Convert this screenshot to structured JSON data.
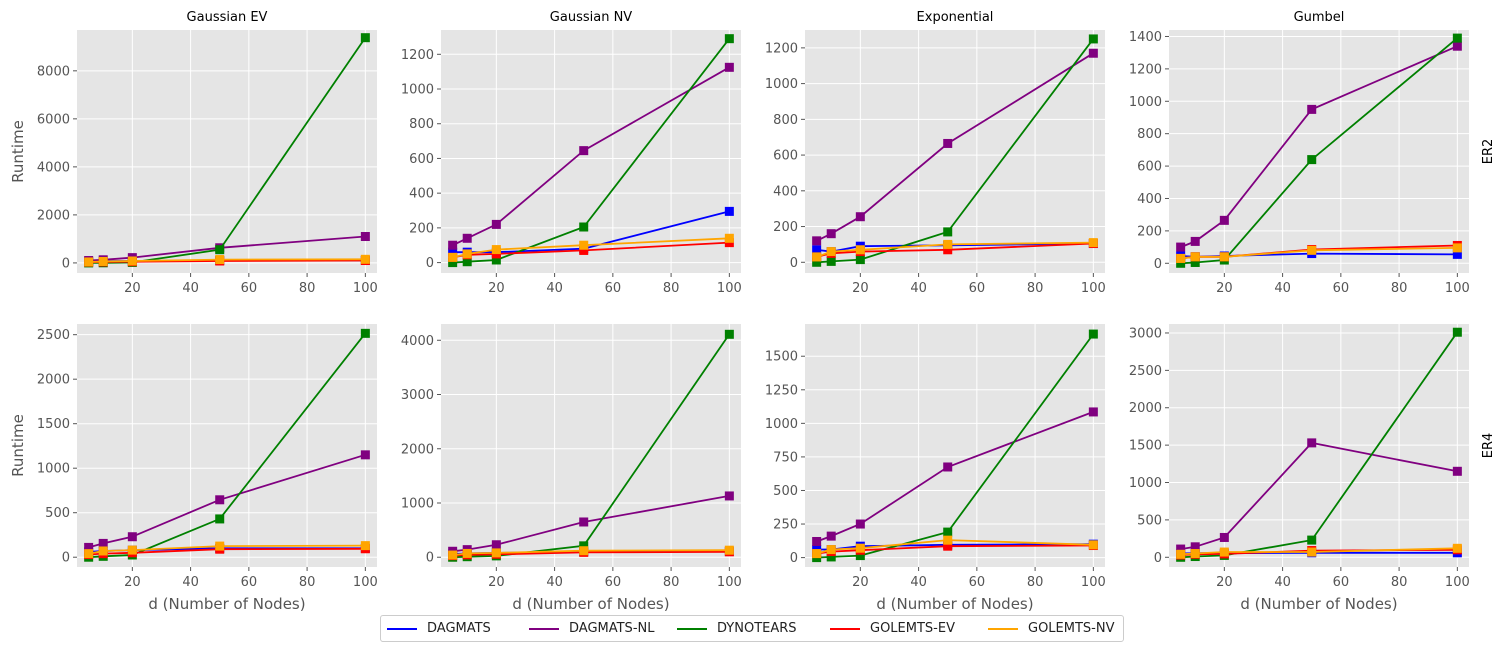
{
  "colors": {
    "panel_bg": "#e5e5e5",
    "grid": "#ffffff",
    "DAGMATS": "#0000ff",
    "DAGMATS-NL": "#800080",
    "DYNOTEARS": "#008000",
    "GOLEMTS-EV": "#ff0000",
    "GOLEMTS-NV": "#ffa500"
  },
  "legend": {
    "placement": "bottom-center",
    "entries": [
      "DAGMATS",
      "DAGMATS-NL",
      "DYNOTEARS",
      "GOLEMTS-EV",
      "GOLEMTS-NV"
    ]
  },
  "column_titles": [
    "Gaussian EV",
    "Gaussian NV",
    "Exponential",
    "Gumbel"
  ],
  "row_labels": [
    "ER2",
    "ER4"
  ],
  "ylabel": "Runtime",
  "xlabel": "d (Number of Nodes)",
  "chart_data": [
    {
      "type": "line",
      "row": "ER2",
      "title": "Gaussian EV",
      "xlabel": "",
      "ylabel": "Runtime",
      "x": [
        5,
        10,
        20,
        50,
        100
      ],
      "xlim": [
        1,
        104
      ],
      "xticks": [
        20,
        40,
        60,
        80,
        100
      ],
      "ylim": [
        -420,
        9700
      ],
      "yticks": [
        0,
        2000,
        4000,
        6000,
        8000
      ],
      "grid": true,
      "series": [
        {
          "name": "DAGMATS",
          "values": [
            60,
            70,
            80,
            100,
            110
          ]
        },
        {
          "name": "DAGMATS-NL",
          "values": [
            100,
            130,
            220,
            630,
            1100
          ]
        },
        {
          "name": "DYNOTEARS",
          "values": [
            0,
            5,
            20,
            550,
            9380
          ]
        },
        {
          "name": "GOLEMTS-EV",
          "values": [
            30,
            40,
            50,
            80,
            100
          ]
        },
        {
          "name": "GOLEMTS-NV",
          "values": [
            40,
            60,
            80,
            140,
            150
          ]
        }
      ]
    },
    {
      "type": "line",
      "row": "ER2",
      "title": "Gaussian NV",
      "xlabel": "",
      "ylabel": "",
      "x": [
        5,
        10,
        20,
        50,
        100
      ],
      "xlim": [
        1,
        104
      ],
      "xticks": [
        20,
        40,
        60,
        80,
        100
      ],
      "ylim": [
        -60,
        1340
      ],
      "yticks": [
        0,
        200,
        400,
        600,
        800,
        1000,
        1200
      ],
      "grid": true,
      "series": [
        {
          "name": "DAGMATS",
          "values": [
            60,
            60,
            60,
            80,
            295
          ]
        },
        {
          "name": "DAGMATS-NL",
          "values": [
            100,
            140,
            220,
            645,
            1125
          ]
        },
        {
          "name": "DYNOTEARS",
          "values": [
            0,
            5,
            15,
            205,
            1290
          ]
        },
        {
          "name": "GOLEMTS-EV",
          "values": [
            30,
            45,
            50,
            70,
            115
          ]
        },
        {
          "name": "GOLEMTS-NV",
          "values": [
            30,
            50,
            75,
            100,
            140
          ]
        }
      ]
    },
    {
      "type": "line",
      "row": "ER2",
      "title": "Exponential",
      "xlabel": "",
      "ylabel": "",
      "x": [
        5,
        10,
        20,
        50,
        100
      ],
      "xlim": [
        1,
        104
      ],
      "xticks": [
        20,
        40,
        60,
        80,
        100
      ],
      "ylim": [
        -60,
        1300
      ],
      "yticks": [
        0,
        200,
        400,
        600,
        800,
        1000,
        1200
      ],
      "grid": true,
      "series": [
        {
          "name": "DAGMATS",
          "values": [
            70,
            60,
            90,
            95,
            105
          ]
        },
        {
          "name": "DAGMATS-NL",
          "values": [
            120,
            160,
            255,
            665,
            1170
          ]
        },
        {
          "name": "DYNOTEARS",
          "values": [
            0,
            5,
            15,
            170,
            1250
          ]
        },
        {
          "name": "GOLEMTS-EV",
          "values": [
            30,
            50,
            60,
            70,
            105
          ]
        },
        {
          "name": "GOLEMTS-NV",
          "values": [
            30,
            60,
            70,
            100,
            110
          ]
        }
      ]
    },
    {
      "type": "line",
      "row": "ER2",
      "title": "Gumbel",
      "xlabel": "",
      "ylabel": "",
      "x": [
        5,
        10,
        20,
        50,
        100
      ],
      "xlim": [
        1,
        104
      ],
      "xticks": [
        20,
        40,
        60,
        80,
        100
      ],
      "ylim": [
        -60,
        1440
      ],
      "yticks": [
        0,
        200,
        400,
        600,
        800,
        1000,
        1200,
        1400
      ],
      "grid": true,
      "series": [
        {
          "name": "DAGMATS",
          "values": [
            45,
            40,
            45,
            60,
            55
          ]
        },
        {
          "name": "DAGMATS-NL",
          "values": [
            100,
            135,
            265,
            950,
            1340
          ]
        },
        {
          "name": "DYNOTEARS",
          "values": [
            0,
            5,
            20,
            640,
            1390
          ]
        },
        {
          "name": "GOLEMTS-EV",
          "values": [
            30,
            40,
            40,
            85,
            110
          ]
        },
        {
          "name": "GOLEMTS-NV",
          "values": [
            30,
            40,
            40,
            80,
            95
          ]
        }
      ]
    },
    {
      "type": "line",
      "row": "ER4",
      "title": "",
      "xlabel": "d (Number of Nodes)",
      "ylabel": "Runtime",
      "x": [
        5,
        10,
        20,
        50,
        100
      ],
      "xlim": [
        1,
        104
      ],
      "xticks": [
        20,
        40,
        60,
        80,
        100
      ],
      "ylim": [
        -110,
        2620
      ],
      "yticks": [
        0,
        500,
        1000,
        1500,
        2000,
        2500
      ],
      "grid": true,
      "series": [
        {
          "name": "DAGMATS",
          "values": [
            60,
            70,
            80,
            100,
            100
          ]
        },
        {
          "name": "DAGMATS-NL",
          "values": [
            110,
            155,
            230,
            645,
            1150
          ]
        },
        {
          "name": "DYNOTEARS",
          "values": [
            0,
            10,
            25,
            430,
            2515
          ]
        },
        {
          "name": "GOLEMTS-EV",
          "values": [
            30,
            40,
            50,
            90,
            95
          ]
        },
        {
          "name": "GOLEMTS-NV",
          "values": [
            40,
            70,
            80,
            125,
            130
          ]
        }
      ]
    },
    {
      "type": "line",
      "row": "ER4",
      "title": "",
      "xlabel": "d (Number of Nodes)",
      "ylabel": "",
      "x": [
        5,
        10,
        20,
        50,
        100
      ],
      "xlim": [
        1,
        104
      ],
      "xticks": [
        20,
        40,
        60,
        80,
        100
      ],
      "ylim": [
        -180,
        4300
      ],
      "yticks": [
        0,
        1000,
        2000,
        3000,
        4000
      ],
      "grid": true,
      "series": [
        {
          "name": "DAGMATS",
          "values": [
            60,
            70,
            80,
            100,
            110
          ]
        },
        {
          "name": "DAGMATS-NL",
          "values": [
            110,
            140,
            230,
            650,
            1130
          ]
        },
        {
          "name": "DYNOTEARS",
          "values": [
            0,
            10,
            25,
            210,
            4110
          ]
        },
        {
          "name": "GOLEMTS-EV",
          "values": [
            30,
            45,
            55,
            90,
            100
          ]
        },
        {
          "name": "GOLEMTS-NV",
          "values": [
            40,
            70,
            80,
            120,
            130
          ]
        }
      ]
    },
    {
      "type": "line",
      "row": "ER4",
      "title": "",
      "xlabel": "d (Number of Nodes)",
      "ylabel": "",
      "x": [
        5,
        10,
        20,
        50,
        100
      ],
      "xlim": [
        1,
        104
      ],
      "xticks": [
        20,
        40,
        60,
        80,
        100
      ],
      "ylim": [
        -70,
        1740
      ],
      "yticks": [
        0,
        250,
        500,
        750,
        1000,
        1250,
        1500
      ],
      "grid": true,
      "series": [
        {
          "name": "DAGMATS",
          "values": [
            60,
            60,
            85,
            95,
            100
          ]
        },
        {
          "name": "DAGMATS-NL",
          "values": [
            120,
            160,
            250,
            675,
            1085
          ]
        },
        {
          "name": "DYNOTEARS",
          "values": [
            0,
            5,
            15,
            190,
            1665
          ]
        },
        {
          "name": "GOLEMTS-EV",
          "values": [
            30,
            45,
            55,
            85,
            90
          ]
        },
        {
          "name": "GOLEMTS-NV",
          "values": [
            30,
            60,
            70,
            130,
            95
          ]
        }
      ]
    },
    {
      "type": "line",
      "row": "ER4",
      "title": "",
      "xlabel": "d (Number of Nodes)",
      "ylabel": "",
      "x": [
        5,
        10,
        20,
        50,
        100
      ],
      "xlim": [
        1,
        104
      ],
      "xticks": [
        20,
        40,
        60,
        80,
        100
      ],
      "ylim": [
        -130,
        3120
      ],
      "yticks": [
        0,
        500,
        1000,
        1500,
        2000,
        2500,
        3000
      ],
      "grid": true,
      "series": [
        {
          "name": "DAGMATS",
          "values": [
            50,
            55,
            55,
            60,
            60
          ]
        },
        {
          "name": "DAGMATS-NL",
          "values": [
            110,
            140,
            265,
            1530,
            1150
          ]
        },
        {
          "name": "DYNOTEARS",
          "values": [
            0,
            10,
            25,
            230,
            3010
          ]
        },
        {
          "name": "GOLEMTS-EV",
          "values": [
            30,
            40,
            45,
            90,
            100
          ]
        },
        {
          "name": "GOLEMTS-NV",
          "values": [
            40,
            50,
            70,
            70,
            120
          ]
        }
      ]
    }
  ]
}
